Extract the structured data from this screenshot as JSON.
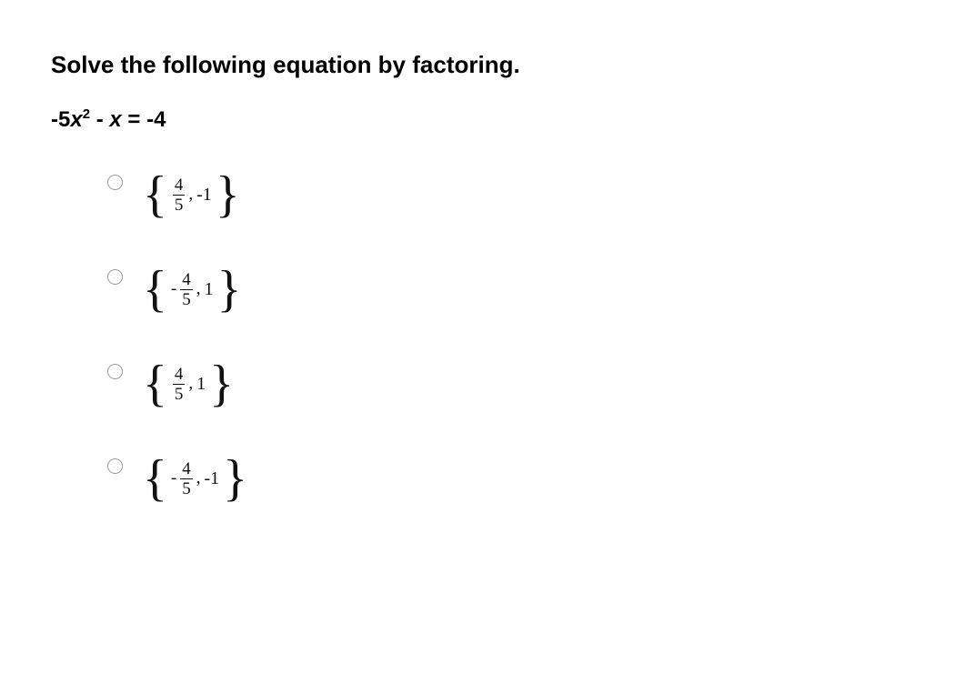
{
  "question": {
    "title": "Solve the following equation by factoring.",
    "equation_prefix": "-5",
    "equation_var": "x",
    "equation_exp": "2",
    "equation_mid": " - ",
    "equation_var2": "x",
    "equation_eq": " = -4"
  },
  "options": [
    {
      "first_negative": false,
      "first_num": "4",
      "first_den": "5",
      "comma": ",",
      "second": "-1"
    },
    {
      "first_negative": true,
      "first_num": "4",
      "first_den": "5",
      "comma": ",",
      "second": "1"
    },
    {
      "first_negative": false,
      "first_num": "4",
      "first_den": "5",
      "comma": ",",
      "second": "1"
    },
    {
      "first_negative": true,
      "first_num": "4",
      "first_den": "5",
      "comma": ",",
      "second": "-1"
    }
  ],
  "style": {
    "text_color": "#000000",
    "background": "#ffffff",
    "radio_border": "#9b9b9b",
    "math_color": "#111111"
  }
}
